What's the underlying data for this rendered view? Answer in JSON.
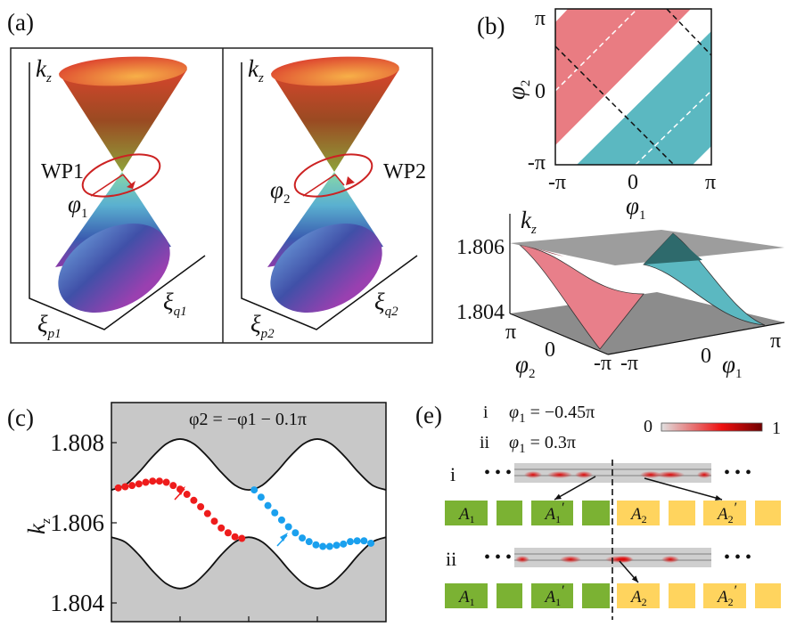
{
  "panel_labels": {
    "a": "(a)",
    "b": "(b)",
    "c": "(c)",
    "e": "(e)"
  },
  "panel_a": {
    "left": {
      "kz": {
        "sym": "k",
        "sub": "z"
      },
      "wp": "WP1",
      "phi": {
        "sym": "φ",
        "sub": "1"
      },
      "xi_p": {
        "sym": "ξ",
        "sub": "p1"
      },
      "xi_q": {
        "sym": "ξ",
        "sub": "q1"
      }
    },
    "right": {
      "kz": {
        "sym": "k",
        "sub": "z"
      },
      "wp": "WP2",
      "phi": {
        "sym": "φ",
        "sub": "2"
      },
      "xi_p": {
        "sym": "ξ",
        "sub": "p2"
      },
      "xi_q": {
        "sym": "ξ",
        "sub": "q2"
      }
    },
    "loop_color": "#cc2222"
  },
  "panel_b": {
    "map": {
      "y_ticks": [
        "π",
        "0",
        "-π"
      ],
      "x_ticks": [
        "-π",
        "0",
        "π"
      ],
      "xlabel": {
        "sym": "φ",
        "sub": "1"
      },
      "ylabel": {
        "sym": "φ",
        "sub": "2"
      }
    },
    "surface": {
      "zlabel": {
        "sym": "k",
        "sub": "z"
      },
      "z_ticks": [
        "1.806",
        "1.804"
      ],
      "phi2_ticks": [
        "π",
        "0",
        "-π"
      ],
      "phi1_ticks": [
        "-π",
        "0",
        "π"
      ],
      "phi1_label": {
        "sym": "φ",
        "sub": "1"
      },
      "phi2_label": {
        "sym": "φ",
        "sub": "2"
      }
    },
    "colors": {
      "pink": "#e97c82",
      "teal": "#5bb8c1",
      "plane": "#8c8c8c"
    }
  },
  "chart_data": {
    "type": "scatter",
    "title": "φ2 = −φ1 − 0.1π",
    "ylabel": "k_z",
    "ylim": [
      1.8035,
      1.809
    ],
    "xlim": [
      -1,
      1
    ],
    "y_ticks": [
      "1.808",
      "1.806",
      "1.804"
    ],
    "x_ticks_unlabeled": [
      -0.5,
      0,
      0.5
    ],
    "band_edges": {
      "x": [
        -1,
        -0.9,
        -0.8,
        -0.7,
        -0.6,
        -0.5,
        -0.4,
        -0.3,
        -0.2,
        -0.1,
        0,
        0.1,
        0.2,
        0.3,
        0.4,
        0.5,
        0.6,
        0.7,
        0.8,
        0.9,
        1
      ],
      "upper": [
        1.80682,
        1.80694,
        1.80726,
        1.80765,
        1.80797,
        1.80809,
        1.80797,
        1.80765,
        1.80726,
        1.80694,
        1.80682,
        1.80694,
        1.80726,
        1.80765,
        1.80797,
        1.80809,
        1.80797,
        1.80765,
        1.80726,
        1.80694,
        1.80682
      ],
      "lower": [
        1.80564,
        1.80552,
        1.8052,
        1.8048,
        1.80448,
        1.80436,
        1.80448,
        1.8048,
        1.8052,
        1.80552,
        1.80564,
        1.80552,
        1.8052,
        1.8048,
        1.80448,
        1.80436,
        1.80448,
        1.8048,
        1.8052,
        1.80552,
        1.80564
      ]
    },
    "series": [
      {
        "color": "#ee1c1c",
        "x": [
          -0.95,
          -0.9,
          -0.85,
          -0.8,
          -0.75,
          -0.7,
          -0.65,
          -0.6,
          -0.55,
          -0.5,
          -0.45,
          -0.4,
          -0.35,
          -0.3,
          -0.25,
          -0.2,
          -0.15,
          -0.1,
          -0.05
        ],
        "y": [
          1.80687,
          1.8069,
          1.80693,
          1.80697,
          1.80701,
          1.80704,
          1.80704,
          1.80701,
          1.80693,
          1.80684,
          1.80671,
          1.80656,
          1.8064,
          1.80623,
          1.80604,
          1.80587,
          1.80575,
          1.80565,
          1.80561
        ]
      },
      {
        "color": "#1aa0ee",
        "x": [
          0.04,
          0.09,
          0.14,
          0.19,
          0.24,
          0.29,
          0.34,
          0.39,
          0.44,
          0.49,
          0.54,
          0.59,
          0.64,
          0.69,
          0.74,
          0.79,
          0.84,
          0.89
        ],
        "y": [
          1.80682,
          1.80664,
          1.80643,
          1.80625,
          1.80607,
          1.8059,
          1.80575,
          1.80562,
          1.80553,
          1.80545,
          1.80541,
          1.80541,
          1.80544,
          1.80547,
          1.80553,
          1.80555,
          1.80555,
          1.80549
        ]
      }
    ],
    "background": "#c8c8c8"
  },
  "panel_e": {
    "case_i": {
      "roman": "i",
      "eq": {
        "sym": "φ",
        "sub": "1",
        "rest": " = −0.45π"
      }
    },
    "case_ii": {
      "roman": "ii",
      "eq": {
        "sym": "φ",
        "sub": "1",
        "rest": " = 0.3π"
      }
    },
    "colorbar": {
      "min": "0",
      "max": "1"
    },
    "row_labels": [
      "i",
      "ii"
    ],
    "ellipsis": "• • •",
    "blocks": [
      {
        "label": "A",
        "sub": "1",
        "prime": "",
        "color": "#7bb233"
      },
      {
        "label": "",
        "sub": "",
        "prime": "",
        "color": "#7bb233"
      },
      {
        "label": "A",
        "sub": "1",
        "prime": "′",
        "color": "#7bb233"
      },
      {
        "label": "",
        "sub": "",
        "prime": "",
        "color": "#7bb233"
      },
      {
        "label": "A",
        "sub": "2",
        "prime": "",
        "color": "#ffd45e"
      },
      {
        "label": "",
        "sub": "",
        "prime": "",
        "color": "#ffd45e"
      },
      {
        "label": "A",
        "sub": "2",
        "prime": "′",
        "color": "#ffd45e"
      },
      {
        "label": "",
        "sub": "",
        "prime": "",
        "color": "#ffd45e"
      }
    ]
  }
}
